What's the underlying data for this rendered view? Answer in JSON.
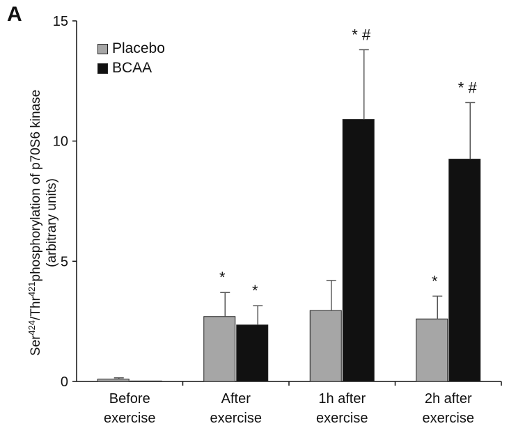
{
  "panel_label": "A",
  "chart_data": {
    "type": "bar",
    "categories": [
      [
        "Before",
        "exercise"
      ],
      [
        "After",
        "exercise"
      ],
      [
        "1h after",
        "exercise"
      ],
      [
        "2h after",
        "exercise"
      ]
    ],
    "series": [
      {
        "name": "Placebo",
        "color": "#a6a6a6",
        "values": [
          0.1,
          2.7,
          2.95,
          2.6
        ],
        "errors": [
          0.05,
          1.0,
          1.25,
          0.95
        ],
        "annotations": [
          "",
          "*",
          "",
          "*"
        ]
      },
      {
        "name": "BCAA",
        "color": "#111111",
        "values": [
          0.02,
          2.35,
          10.9,
          9.25
        ],
        "errors": [
          0.0,
          0.8,
          2.9,
          2.35
        ],
        "annotations": [
          "",
          "*",
          "* #",
          "* #"
        ]
      }
    ],
    "ylabel": {
      "ser": "Ser",
      "ser_sup": "424",
      "thr": "/Thr",
      "thr_sup": "421",
      "rest": "phosphorylation of p70S6 kinase",
      "units": "(arbitrary units)"
    },
    "yticks": [
      0,
      5,
      10,
      15
    ],
    "ylim": [
      0,
      15
    ],
    "grid": false,
    "legend": "top-left"
  }
}
